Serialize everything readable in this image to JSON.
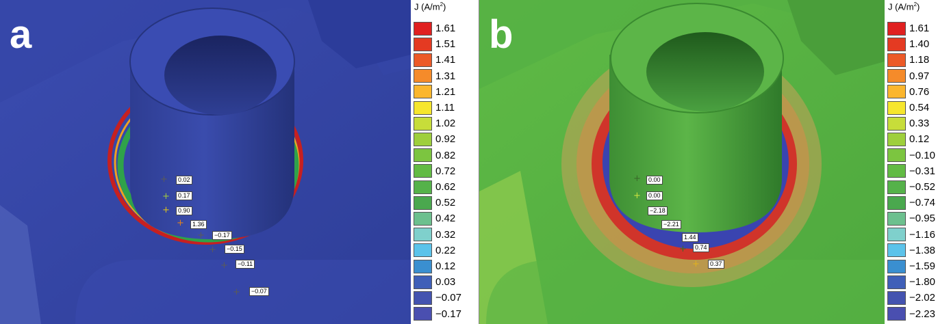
{
  "panels": [
    {
      "letter": "a",
      "legend_title": "J (A/m",
      "legend_title_sup": "2",
      "legend_title_end": ")",
      "legend": [
        {
          "value": "1.61",
          "color": "#e02020"
        },
        {
          "value": "1.51",
          "color": "#e43a22"
        },
        {
          "value": "1.41",
          "color": "#ec5a28"
        },
        {
          "value": "1.31",
          "color": "#f58b2a"
        },
        {
          "value": "1.21",
          "color": "#fbb62d"
        },
        {
          "value": "1.11",
          "color": "#f6e62d"
        },
        {
          "value": "1.02",
          "color": "#c7dd3a"
        },
        {
          "value": "0.92",
          "color": "#9ecf3c"
        },
        {
          "value": "0.82",
          "color": "#7cc540"
        },
        {
          "value": "0.72",
          "color": "#62bb44"
        },
        {
          "value": "0.62",
          "color": "#55b24a"
        },
        {
          "value": "0.52",
          "color": "#4aa84e"
        },
        {
          "value": "0.42",
          "color": "#6cc08e"
        },
        {
          "value": "0.32",
          "color": "#7fd0cc"
        },
        {
          "value": "0.22",
          "color": "#5cc3ea"
        },
        {
          "value": "0.12",
          "color": "#3a8fd0"
        },
        {
          "value": "0.03",
          "color": "#3f5fb8"
        },
        {
          "value": "−0.07",
          "color": "#4453b0"
        },
        {
          "value": "−0.17",
          "color": "#4a4fb0"
        }
      ],
      "probes": [
        {
          "value": "0.02"
        },
        {
          "value": "0.17"
        },
        {
          "value": "0.90"
        },
        {
          "value": "1.36"
        },
        {
          "value": "−0.17"
        },
        {
          "value": "−0.15"
        },
        {
          "value": "−0.11"
        },
        {
          "value": "−0.07"
        }
      ]
    },
    {
      "letter": "b",
      "legend_title": "J (A/m",
      "legend_title_sup": "2",
      "legend_title_end": ")",
      "legend": [
        {
          "value": "1.61",
          "color": "#e02020"
        },
        {
          "value": "1.40",
          "color": "#e43a22"
        },
        {
          "value": "1.18",
          "color": "#ec5a28"
        },
        {
          "value": "0.97",
          "color": "#f58b2a"
        },
        {
          "value": "0.76",
          "color": "#fbb62d"
        },
        {
          "value": "0.54",
          "color": "#f6e62d"
        },
        {
          "value": "0.33",
          "color": "#c7dd3a"
        },
        {
          "value": "0.12",
          "color": "#9ecf3c"
        },
        {
          "value": "−0.10",
          "color": "#7cc540"
        },
        {
          "value": "−0.31",
          "color": "#62bb44"
        },
        {
          "value": "−0.52",
          "color": "#55b24a"
        },
        {
          "value": "−0.74",
          "color": "#4aa84e"
        },
        {
          "value": "−0.95",
          "color": "#6cc08e"
        },
        {
          "value": "−1.16",
          "color": "#7fd0cc"
        },
        {
          "value": "−1.38",
          "color": "#5cc3ea"
        },
        {
          "value": "−1.59",
          "color": "#3a8fd0"
        },
        {
          "value": "−1.80",
          "color": "#3f5fb8"
        },
        {
          "value": "−2.02",
          "color": "#4453b0"
        },
        {
          "value": "−2.23",
          "color": "#4a4fb0"
        }
      ],
      "probes": [
        {
          "value": "0.00"
        },
        {
          "value": "0.00"
        },
        {
          "value": "−2.18"
        },
        {
          "value": "−2.21"
        },
        {
          "value": "1.44"
        },
        {
          "value": "0.74"
        },
        {
          "value": "0.37"
        }
      ]
    }
  ],
  "colors": {
    "panel_a_base": "#3848a8",
    "panel_b_base": "#5ab544",
    "edge_red": "#c62020",
    "edge_green": "#2fa24a"
  }
}
